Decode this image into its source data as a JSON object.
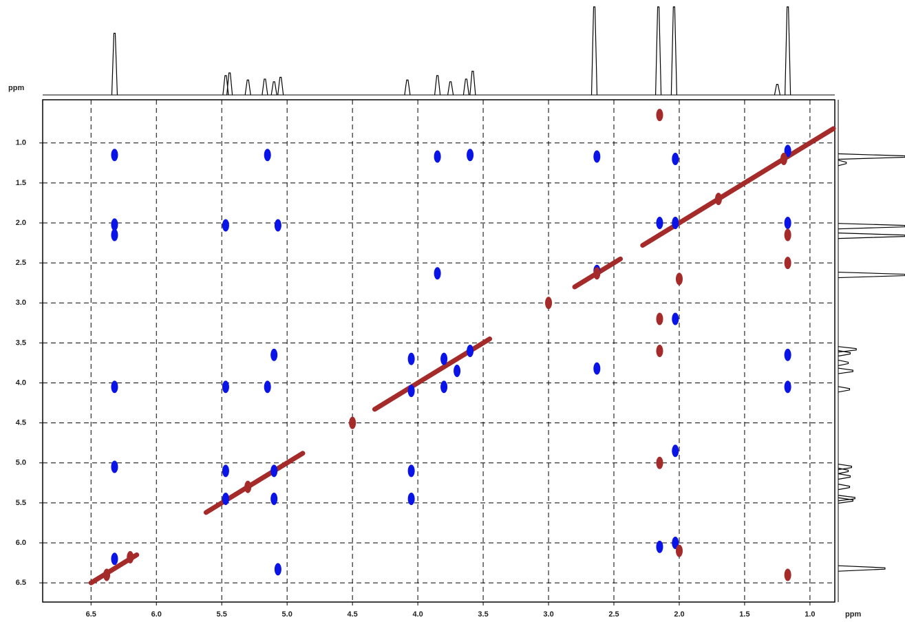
{
  "chart_data": {
    "type": "nmr2d",
    "xlabel": "ppm",
    "ylabel": "ppm",
    "xlim": [
      6.87,
      0.81
    ],
    "ylim": [
      0.46,
      6.74
    ],
    "xticks": [
      6.5,
      {
        "value": 6,
        "label": "6.0"
      },
      5.5,
      {
        "value": 5,
        "label": "5.0"
      },
      4.5,
      {
        "value": 4,
        "label": "4.0"
      },
      3.5,
      {
        "value": 3,
        "label": "3.0"
      },
      2.5,
      {
        "value": 2,
        "label": "2.0"
      },
      1.5,
      {
        "value": 1,
        "label": "1.0"
      }
    ],
    "yticks": [
      {
        "value": 1,
        "label": "1.0"
      },
      1.5,
      {
        "value": 2,
        "label": "2.0"
      },
      2.5,
      {
        "value": 3,
        "label": "3.0"
      },
      3.5,
      {
        "value": 4,
        "label": "4.0"
      },
      4.5,
      {
        "value": 5,
        "label": "5.0"
      },
      5.5,
      {
        "value": 6,
        "label": "6.0"
      },
      6.5
    ],
    "grid": true,
    "series": [
      {
        "color": "#0a14e6",
        "x": [
          6.32,
          6.32,
          6.32,
          6.32,
          6.32,
          6.32,
          5.15,
          5.47,
          5.07,
          3.85,
          3.6,
          2.63,
          5.47,
          5.1,
          5.15,
          5.47,
          5.47,
          5.1,
          5.1,
          5.07,
          4.05,
          4.05,
          3.85,
          3.8,
          3.7,
          3.6,
          3.8,
          4.05,
          4.05,
          2.63,
          2.63,
          2.15,
          2.03,
          2.03,
          2.03,
          2.15,
          2.03,
          1.17,
          1.17,
          1.17,
          1.17,
          2.03
        ],
        "y": [
          1.15,
          2.02,
          2.15,
          4.05,
          5.05,
          6.2,
          1.15,
          2.03,
          2.03,
          1.17,
          1.15,
          1.17,
          4.05,
          3.65,
          4.05,
          5.1,
          5.45,
          5.1,
          5.45,
          6.33,
          3.7,
          4.1,
          2.63,
          3.7,
          3.85,
          3.6,
          4.05,
          5.1,
          5.45,
          2.6,
          3.82,
          2.0,
          1.2,
          2.0,
          3.2,
          6.05,
          6.0,
          1.1,
          2.0,
          3.65,
          4.05,
          4.85
        ]
      },
      {
        "color": "#a52a2a",
        "x": [
          2.15,
          2.15,
          1.17,
          1.17,
          2.0,
          2.15,
          2.15,
          1.7,
          2.63,
          3.0,
          4.5,
          5.3,
          6.38,
          6.2,
          1.17,
          2.0,
          1.2
        ],
        "y": [
          0.65,
          5.0,
          2.15,
          2.5,
          2.7,
          3.2,
          3.6,
          1.7,
          2.63,
          3.0,
          4.5,
          5.3,
          6.4,
          6.18,
          6.4,
          6.1,
          1.2
        ]
      }
    ],
    "diagonal_segments": [
      [
        4.33,
        3.45
      ],
      [
        2.8,
        2.45
      ],
      [
        2.28,
        0.82
      ],
      [
        5.62,
        4.88
      ],
      [
        6.5,
        6.15
      ]
    ],
    "projection": {
      "shifts": [
        6.32,
        5.47,
        5.44,
        5.3,
        5.17,
        5.1,
        5.05,
        4.08,
        3.85,
        3.75,
        3.63,
        3.58,
        2.65,
        2.16,
        2.04,
        1.25,
        1.17
      ],
      "heights": [
        70,
        22,
        25,
        17,
        18,
        15,
        20,
        17,
        22,
        15,
        18,
        27,
        100,
        100,
        100,
        12,
        100
      ]
    }
  }
}
